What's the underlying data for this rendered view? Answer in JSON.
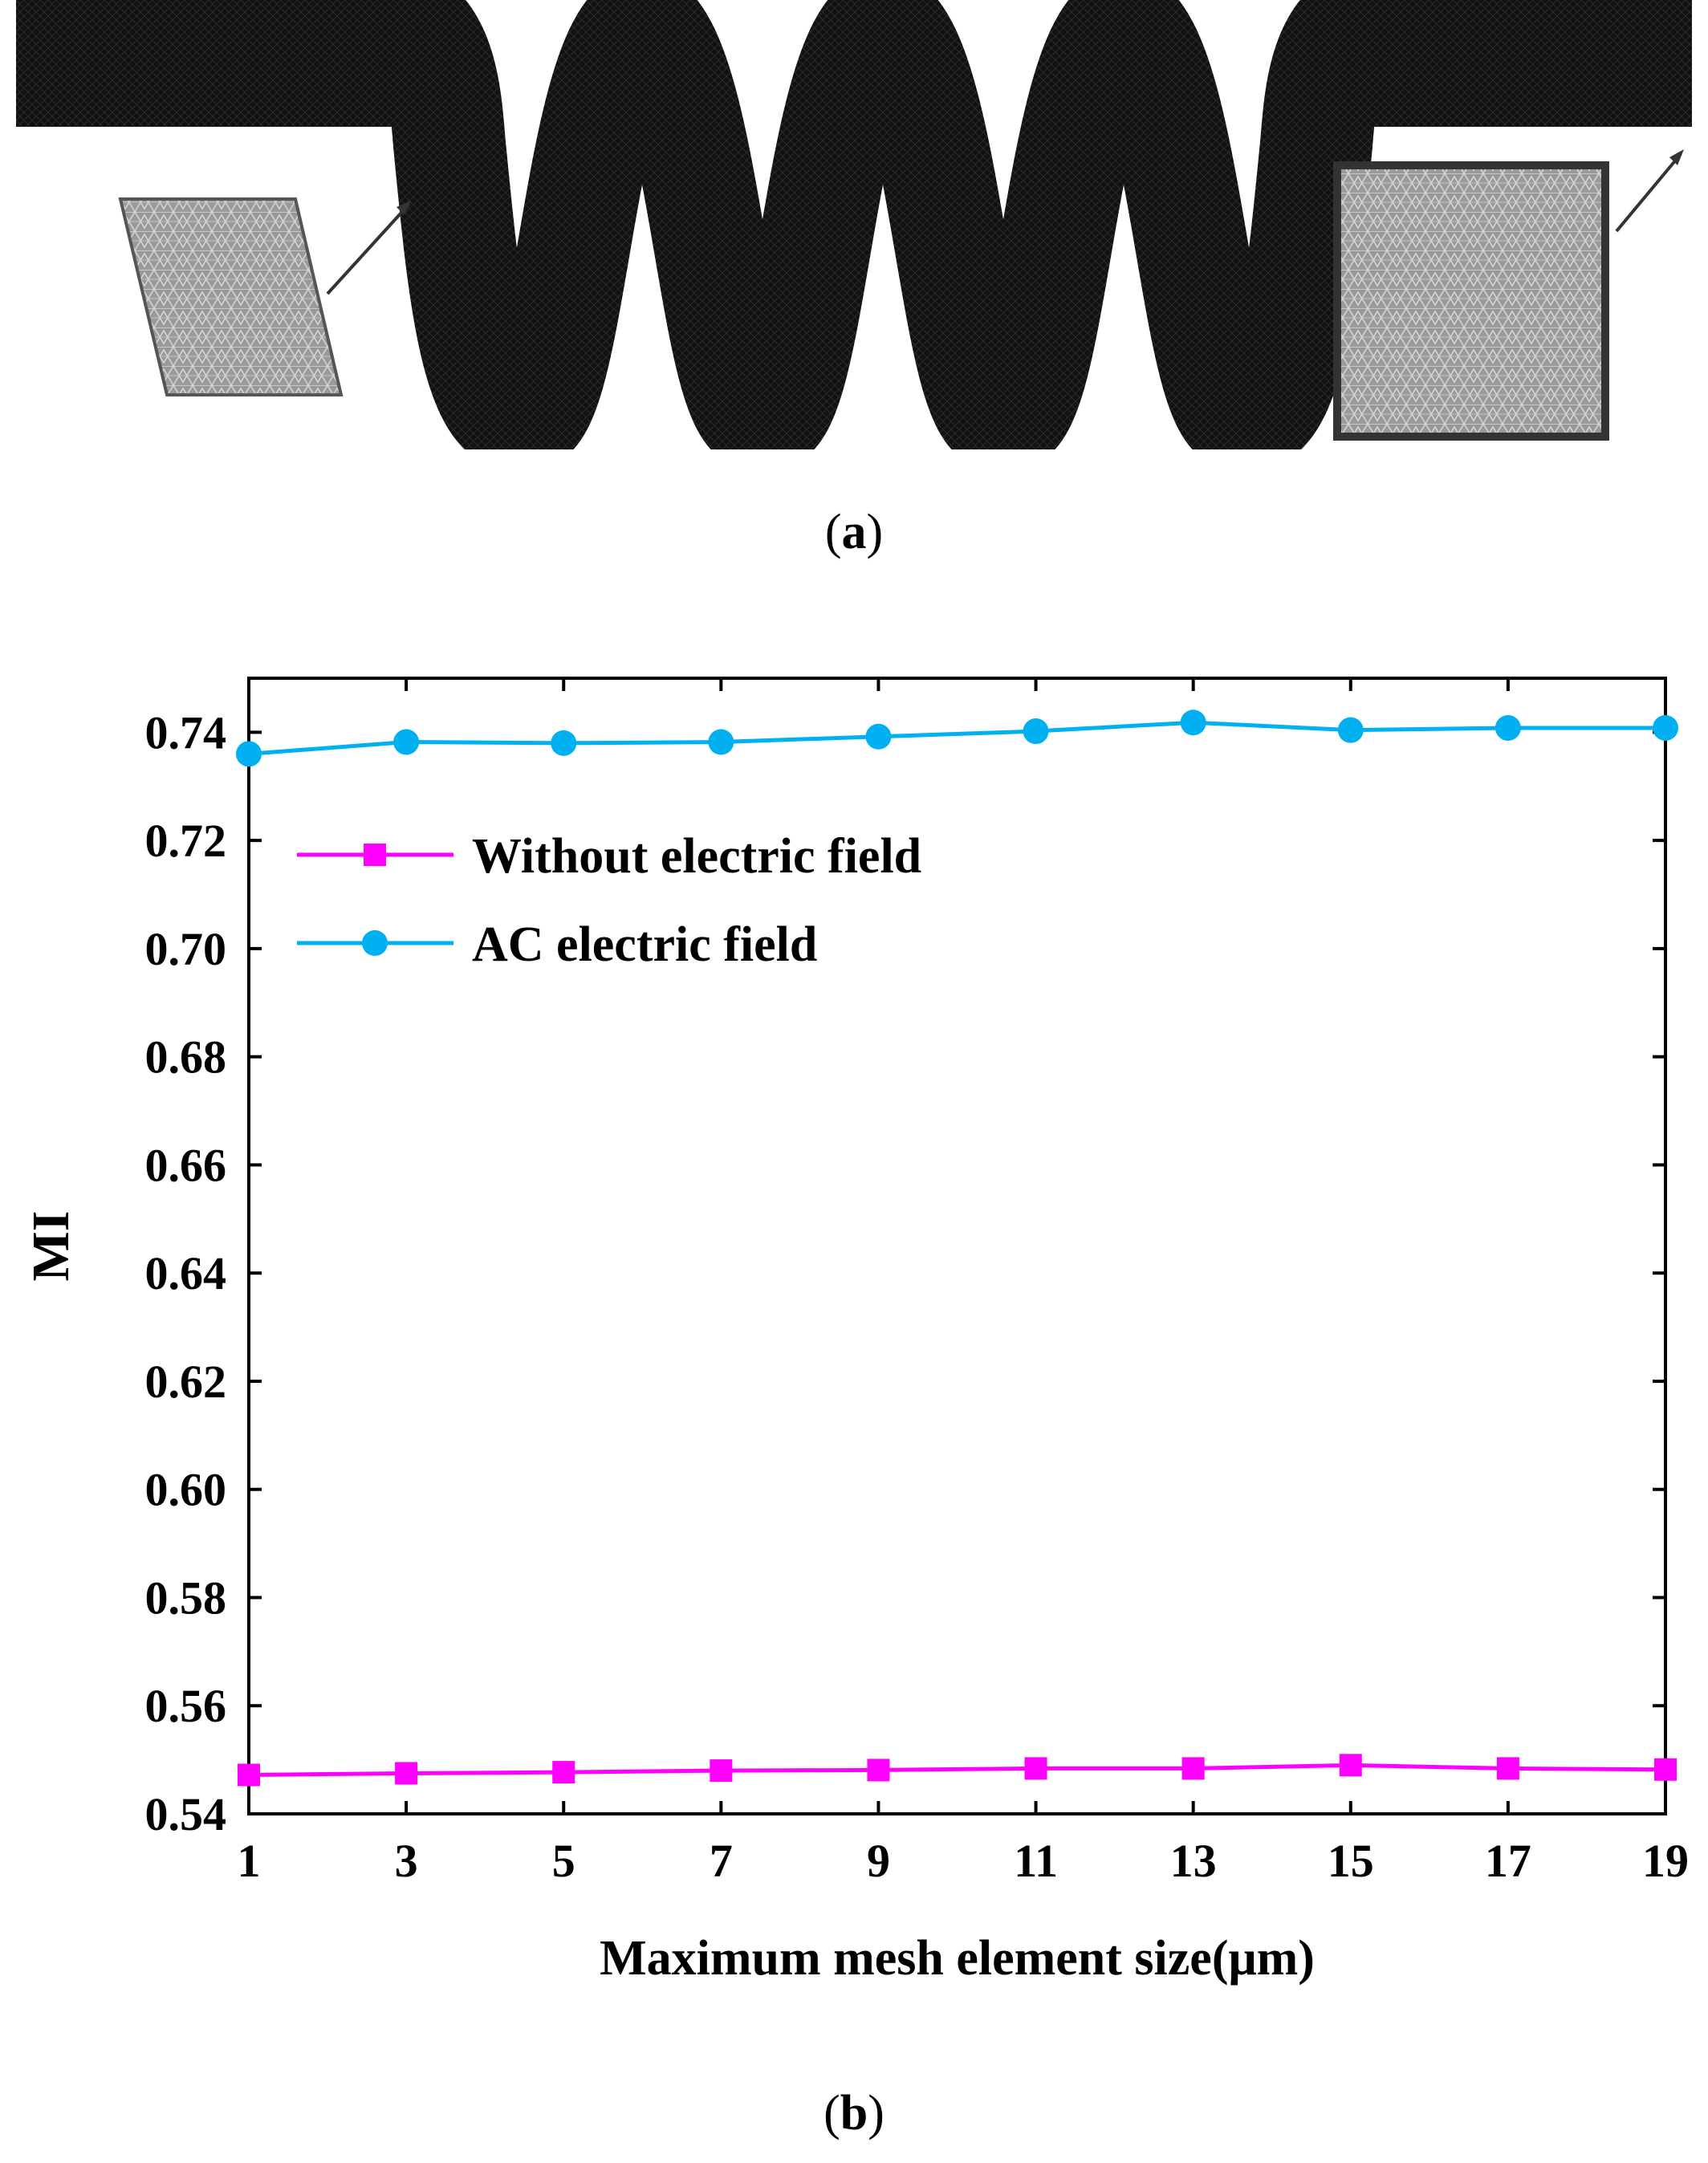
{
  "panel_labels": {
    "a": "a",
    "b": "b"
  },
  "colors": {
    "series_without": "#ff00ff",
    "series_ac": "#00b0f0",
    "mesh": "#111111",
    "inset": "#8c8c8c"
  },
  "chart_data": {
    "type": "line",
    "xlabel": "Maximum mesh element size(μm)",
    "ylabel": "MI",
    "xlim": [
      1,
      19
    ],
    "ylim": [
      0.54,
      0.75
    ],
    "xticks": [
      "1",
      "3",
      "5",
      "7",
      "9",
      "11",
      "13",
      "15",
      "17",
      "19"
    ],
    "yticks": [
      "0.54",
      "0.56",
      "0.58",
      "0.60",
      "0.62",
      "0.64",
      "0.66",
      "0.68",
      "0.70",
      "0.72",
      "0.74"
    ],
    "legend_position": "upper-left",
    "grid": false,
    "x": [
      1,
      3,
      5,
      7,
      9,
      11,
      13,
      15,
      17,
      19
    ],
    "series": [
      {
        "name": "Without electric field",
        "marker": "square",
        "values": [
          0.5472,
          0.5475,
          0.5477,
          0.548,
          0.5481,
          0.5484,
          0.5484,
          0.549,
          0.5484,
          0.5482
        ]
      },
      {
        "name": "AC electric field",
        "marker": "circle",
        "values": [
          0.736,
          0.7382,
          0.738,
          0.7382,
          0.7392,
          0.7402,
          0.7418,
          0.7404,
          0.7408,
          0.7408
        ]
      }
    ]
  }
}
